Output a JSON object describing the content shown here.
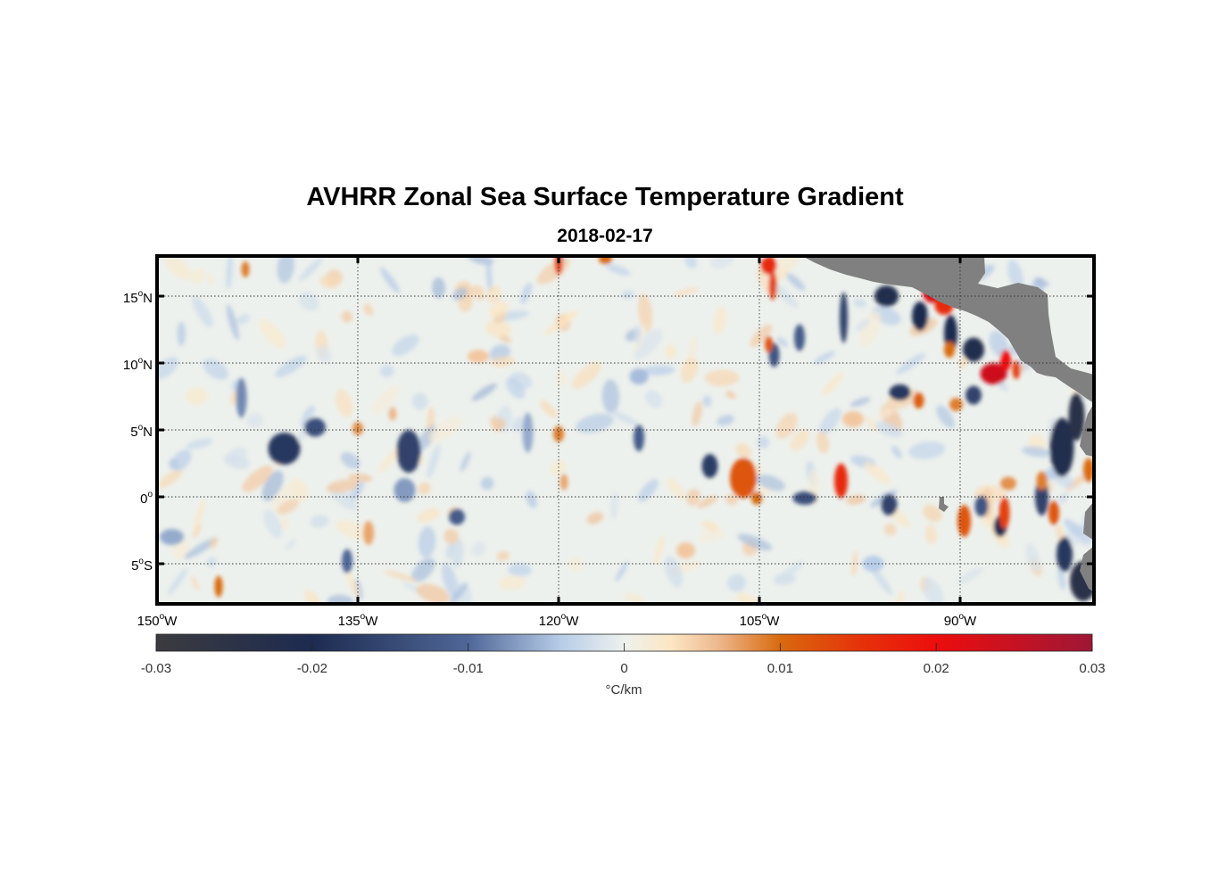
{
  "figure": {
    "title": "AVHRR Zonal Sea Surface Temperature Gradient",
    "date": "2018-02-17"
  },
  "chart_data": {
    "type": "heatmap",
    "title": "AVHRR Zonal Sea Surface Temperature Gradient",
    "subtitle": "2018-02-17",
    "xlim": [
      -150,
      -80
    ],
    "ylim": [
      -8,
      18
    ],
    "x_ticks": [
      {
        "value": -150,
        "deg": "150",
        "hem": "W"
      },
      {
        "value": -135,
        "deg": "135",
        "hem": "W"
      },
      {
        "value": -120,
        "deg": "120",
        "hem": "W"
      },
      {
        "value": -105,
        "deg": "105",
        "hem": "W"
      },
      {
        "value": -90,
        "deg": "90",
        "hem": "W"
      }
    ],
    "y_ticks": [
      {
        "value": 15,
        "deg": "15",
        "hem": "N"
      },
      {
        "value": 10,
        "deg": "10",
        "hem": "N"
      },
      {
        "value": 5,
        "deg": "5",
        "hem": "N"
      },
      {
        "value": 0,
        "deg": "0",
        "hem": ""
      },
      {
        "value": -5,
        "deg": "5",
        "hem": "S"
      }
    ],
    "grid": "dotted",
    "colorbar": {
      "label": "°C/km",
      "range": [
        -0.03,
        0.03
      ],
      "ticks": [
        "-0.03",
        "-0.02",
        "-0.01",
        "0",
        "0.01",
        "0.02",
        "0.03"
      ],
      "colors": [
        {
          "v": -0.03,
          "c": "#3b3b3f"
        },
        {
          "v": -0.02,
          "c": "#1d2b50"
        },
        {
          "v": -0.01,
          "c": "#4f6797"
        },
        {
          "v": -0.004,
          "c": "#b8cde8"
        },
        {
          "v": 0,
          "c": "#edf1ed"
        },
        {
          "v": 0.003,
          "c": "#fce6c4"
        },
        {
          "v": 0.006,
          "c": "#edb88e"
        },
        {
          "v": 0.01,
          "c": "#d96a0e"
        },
        {
          "v": 0.015,
          "c": "#e5340a"
        },
        {
          "v": 0.02,
          "c": "#ed0d0d"
        },
        {
          "v": 0.03,
          "c": "#9e1737"
        }
      ]
    },
    "land_color": "#808080",
    "features": [
      {
        "lon": -140.5,
        "lat": 3.6,
        "value": -0.018,
        "rlon": 1.2,
        "rlat": 1.2
      },
      {
        "lon": -138.2,
        "lat": 5.2,
        "value": -0.014,
        "rlon": 0.8,
        "rlat": 0.7
      },
      {
        "lon": -131.2,
        "lat": 3.4,
        "value": -0.016,
        "rlon": 0.9,
        "rlat": 1.6
      },
      {
        "lon": -127.6,
        "lat": -1.5,
        "value": -0.012,
        "rlon": 0.6,
        "rlat": 0.6
      },
      {
        "lon": -143.7,
        "lat": 7.4,
        "value": -0.008,
        "rlon": 0.4,
        "rlat": 1.5
      },
      {
        "lon": -148.9,
        "lat": -3.0,
        "value": -0.006,
        "rlon": 0.9,
        "rlat": 0.6
      },
      {
        "lon": -135.8,
        "lat": -4.8,
        "value": -0.01,
        "rlon": 0.4,
        "rlat": 0.9
      },
      {
        "lon": -131.5,
        "lat": 0.5,
        "value": -0.007,
        "rlon": 0.8,
        "rlat": 0.9
      },
      {
        "lon": -122.3,
        "lat": 4.8,
        "value": -0.006,
        "rlon": 0.4,
        "rlat": 1.5
      },
      {
        "lon": -114.0,
        "lat": 4.4,
        "value": -0.012,
        "rlon": 0.4,
        "rlat": 1.0
      },
      {
        "lon": -108.7,
        "lat": 2.3,
        "value": -0.017,
        "rlon": 0.6,
        "rlat": 0.9
      },
      {
        "lon": -103.9,
        "lat": 10.6,
        "value": -0.013,
        "rlon": 0.4,
        "rlat": 0.9
      },
      {
        "lon": -102.0,
        "lat": 11.9,
        "value": -0.012,
        "rlon": 0.4,
        "rlat": 1.0
      },
      {
        "lon": -98.7,
        "lat": 13.4,
        "value": -0.016,
        "rlon": 0.3,
        "rlat": 1.9
      },
      {
        "lon": -101.6,
        "lat": -0.1,
        "value": -0.014,
        "rlon": 0.9,
        "rlat": 0.5
      },
      {
        "lon": -95.5,
        "lat": 15.0,
        "value": -0.022,
        "rlon": 0.9,
        "rlat": 0.8
      },
      {
        "lon": -93.0,
        "lat": 13.5,
        "value": -0.02,
        "rlon": 0.6,
        "rlat": 1.1
      },
      {
        "lon": -90.7,
        "lat": 12.2,
        "value": -0.02,
        "rlon": 0.5,
        "rlat": 1.4
      },
      {
        "lon": -89.0,
        "lat": 11.0,
        "value": -0.022,
        "rlon": 0.8,
        "rlat": 0.9
      },
      {
        "lon": -94.5,
        "lat": 7.8,
        "value": -0.018,
        "rlon": 0.8,
        "rlat": 0.6
      },
      {
        "lon": -89.0,
        "lat": 7.6,
        "value": -0.016,
        "rlon": 0.6,
        "rlat": 0.7
      },
      {
        "lon": -95.3,
        "lat": -0.6,
        "value": -0.016,
        "rlon": 0.6,
        "rlat": 0.8
      },
      {
        "lon": -88.4,
        "lat": -0.7,
        "value": -0.013,
        "rlon": 0.5,
        "rlat": 0.8
      },
      {
        "lon": -87.0,
        "lat": -2.2,
        "value": -0.02,
        "rlon": 0.5,
        "rlat": 0.8
      },
      {
        "lon": -82.4,
        "lat": 3.7,
        "value": -0.022,
        "rlon": 0.9,
        "rlat": 2.2
      },
      {
        "lon": -81.3,
        "lat": 6.0,
        "value": -0.024,
        "rlon": 0.6,
        "rlat": 1.8
      },
      {
        "lon": -80.8,
        "lat": -6.3,
        "value": -0.024,
        "rlon": 1.0,
        "rlat": 1.5
      },
      {
        "lon": -82.2,
        "lat": -4.3,
        "value": -0.018,
        "rlon": 0.6,
        "rlat": 1.3
      },
      {
        "lon": -83.9,
        "lat": 0.0,
        "value": -0.016,
        "rlon": 0.5,
        "rlat": 1.4
      },
      {
        "lon": -135.0,
        "lat": 5.1,
        "value": 0.008,
        "rlon": 0.4,
        "rlat": 0.5
      },
      {
        "lon": -132.4,
        "lat": 6.2,
        "value": 0.006,
        "rlon": 0.3,
        "rlat": 0.5
      },
      {
        "lon": -120.0,
        "lat": 4.7,
        "value": 0.009,
        "rlon": 0.4,
        "rlat": 0.6
      },
      {
        "lon": -119.6,
        "lat": 1.1,
        "value": 0.007,
        "rlon": 0.3,
        "rlat": 0.6
      },
      {
        "lon": -134.2,
        "lat": -2.7,
        "value": 0.007,
        "rlon": 0.4,
        "rlat": 0.9
      },
      {
        "lon": -145.4,
        "lat": -6.7,
        "value": 0.01,
        "rlon": 0.3,
        "rlat": 0.8
      },
      {
        "lon": -143.4,
        "lat": 17.0,
        "value": 0.009,
        "rlon": 0.3,
        "rlat": 0.6
      },
      {
        "lon": -120.0,
        "lat": 17.5,
        "value": 0.014,
        "rlon": 0.3,
        "rlat": 0.9
      },
      {
        "lon": -116.5,
        "lat": 17.8,
        "value": 0.01,
        "rlon": 0.5,
        "rlat": 0.4
      },
      {
        "lon": -104.3,
        "lat": 17.3,
        "value": 0.016,
        "rlon": 0.6,
        "rlat": 0.7
      },
      {
        "lon": -104.0,
        "lat": 15.8,
        "value": 0.014,
        "rlon": 0.3,
        "rlat": 1.1
      },
      {
        "lon": -104.3,
        "lat": 11.4,
        "value": 0.012,
        "rlon": 0.3,
        "rlat": 0.6
      },
      {
        "lon": -106.2,
        "lat": 1.4,
        "value": 0.012,
        "rlon": 1.0,
        "rlat": 1.5
      },
      {
        "lon": -105.2,
        "lat": -0.1,
        "value": 0.01,
        "rlon": 0.4,
        "rlat": 0.5
      },
      {
        "lon": -98.9,
        "lat": 1.2,
        "value": 0.016,
        "rlon": 0.5,
        "rlat": 1.3
      },
      {
        "lon": -92.1,
        "lat": 15.3,
        "value": 0.022,
        "rlon": 0.7,
        "rlat": 0.8
      },
      {
        "lon": -91.2,
        "lat": 14.3,
        "value": 0.016,
        "rlon": 0.7,
        "rlat": 0.7
      },
      {
        "lon": -87.5,
        "lat": 9.2,
        "value": 0.024,
        "rlon": 1.0,
        "rlat": 0.8
      },
      {
        "lon": -86.6,
        "lat": 10.2,
        "value": 0.02,
        "rlon": 0.4,
        "rlat": 0.8
      },
      {
        "lon": -85.8,
        "lat": 9.5,
        "value": 0.014,
        "rlon": 0.3,
        "rlat": 0.7
      },
      {
        "lon": -90.8,
        "lat": 11.0,
        "value": 0.01,
        "rlon": 0.4,
        "rlat": 0.6
      },
      {
        "lon": -93.1,
        "lat": 7.2,
        "value": 0.011,
        "rlon": 0.4,
        "rlat": 0.6
      },
      {
        "lon": -90.3,
        "lat": 6.9,
        "value": 0.009,
        "rlon": 0.5,
        "rlat": 0.5
      },
      {
        "lon": -89.7,
        "lat": -1.8,
        "value": 0.012,
        "rlon": 0.5,
        "rlat": 1.2
      },
      {
        "lon": -86.7,
        "lat": -1.2,
        "value": 0.014,
        "rlon": 0.4,
        "rlat": 1.2
      },
      {
        "lon": -86.4,
        "lat": 1.0,
        "value": 0.008,
        "rlon": 0.6,
        "rlat": 0.5
      },
      {
        "lon": -83.9,
        "lat": 1.2,
        "value": 0.009,
        "rlon": 0.4,
        "rlat": 0.7
      },
      {
        "lon": -83.0,
        "lat": -1.2,
        "value": 0.012,
        "rlon": 0.4,
        "rlat": 0.9
      },
      {
        "lon": -80.4,
        "lat": 2.0,
        "value": 0.01,
        "rlon": 0.4,
        "rlat": 0.9
      },
      {
        "lon": -98.0,
        "lat": 5.8,
        "value": 0.005,
        "rlon": 0.8,
        "rlat": 0.6
      },
      {
        "lon": -110.5,
        "lat": -4.0,
        "value": 0.005,
        "rlon": 0.7,
        "rlat": 0.6
      },
      {
        "lon": -126.0,
        "lat": 10.5,
        "value": 0.005,
        "rlon": 0.8,
        "rlat": 0.5
      },
      {
        "lon": -114.0,
        "lat": 9.0,
        "value": -0.005,
        "rlon": 0.7,
        "rlat": 0.6
      },
      {
        "lon": -96.5,
        "lat": -5.0,
        "value": -0.004,
        "rlon": 0.8,
        "rlat": 0.6
      }
    ]
  }
}
